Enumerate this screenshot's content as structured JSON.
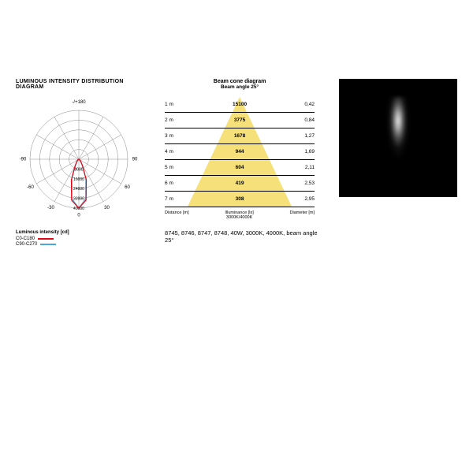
{
  "polar": {
    "title": "LUMINOUS INTENSITY DISTRIBUTION DIAGRAM",
    "top_label": "-/+180",
    "angles": [
      -90,
      -60,
      -30,
      0,
      30,
      60,
      90
    ],
    "rings": [
      8000,
      16000,
      24000,
      32000,
      40000
    ],
    "ring_color": "#888",
    "c0_color": "#e30613",
    "c90_color": "#4aa8d8",
    "c0_values": [
      1.0,
      0.85,
      0.45,
      0.15,
      0.05,
      0.02,
      0.0
    ],
    "c90_values": [
      1.0,
      0.82,
      0.42,
      0.13,
      0.04,
      0.02,
      0.0
    ],
    "legend_title": "Luminous intensity [cd]",
    "legend_items": [
      {
        "label": "C0-C180",
        "color": "#e30613"
      },
      {
        "label": "C90-C270",
        "color": "#4aa8d8"
      }
    ]
  },
  "beam": {
    "title": "Beam cone diagram",
    "subtitle": "Beam angle 25°",
    "cone_color": "#f5e07a",
    "rows": [
      {
        "dist": "1 m",
        "lux": "15100",
        "dia": "0,42"
      },
      {
        "dist": "2 m",
        "lux": "3775",
        "dia": "0,84"
      },
      {
        "dist": "3 m",
        "lux": "1678",
        "dia": "1,27"
      },
      {
        "dist": "4 m",
        "lux": "944",
        "dia": "1,69"
      },
      {
        "dist": "5 m",
        "lux": "604",
        "dia": "2,11"
      },
      {
        "dist": "6 m",
        "lux": "419",
        "dia": "2,53"
      },
      {
        "dist": "7 m",
        "lux": "308",
        "dia": "2,95"
      }
    ],
    "footer": {
      "l": "Distance [m]",
      "c": "Illuminance [lx]\n3000K/4000K",
      "r": "Diameter [m]"
    }
  },
  "caption": "8745, 8746, 8747, 8748, 40W, 3000K, 4000K, beam angle 25°"
}
